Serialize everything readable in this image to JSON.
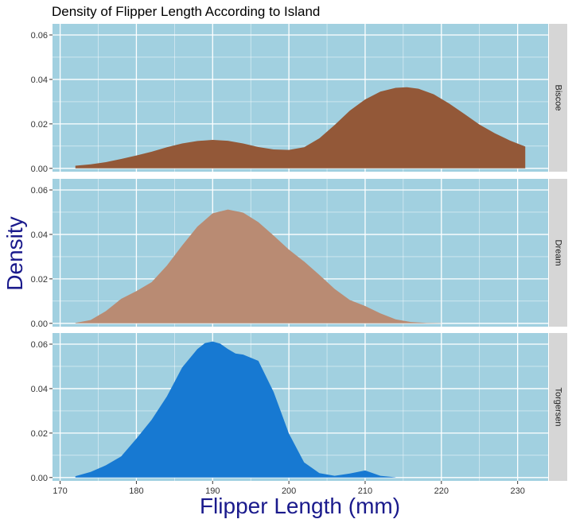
{
  "chart_data": {
    "type": "area",
    "title": "Density of Flipper Length According to Island",
    "xlabel": "Flipper Length (mm)",
    "ylabel": "Density",
    "xlim": [
      169,
      234
    ],
    "ylim": [
      -0.0015,
      0.065
    ],
    "x_ticks": [
      170,
      180,
      190,
      200,
      210,
      220,
      230
    ],
    "y_ticks": [
      0.0,
      0.02,
      0.04,
      0.06
    ],
    "y_tick_labels": [
      "0.00",
      "0.02",
      "0.04",
      "0.06"
    ],
    "grid": true,
    "facets": [
      {
        "name": "Biscoe",
        "color": "#935838",
        "x": [
          172,
          174,
          176,
          178,
          180,
          182,
          184,
          186,
          188,
          190,
          192,
          194,
          196,
          198,
          200,
          202,
          204,
          206,
          208,
          210,
          212,
          214,
          215.5,
          217,
          219,
          221,
          223,
          225,
          227,
          229,
          231
        ],
        "y": [
          0.0012,
          0.0018,
          0.0028,
          0.0042,
          0.0058,
          0.0075,
          0.0095,
          0.0112,
          0.0123,
          0.0128,
          0.0124,
          0.0112,
          0.0096,
          0.0085,
          0.0083,
          0.0095,
          0.0135,
          0.0195,
          0.026,
          0.031,
          0.0345,
          0.0362,
          0.0365,
          0.0358,
          0.0333,
          0.0292,
          0.0245,
          0.0197,
          0.0158,
          0.0125,
          0.0098
        ]
      },
      {
        "name": "Dream",
        "color": "#b98b73",
        "x": [
          172,
          174,
          176,
          178,
          180,
          182,
          184,
          186,
          188,
          190,
          192,
          194,
          196,
          198,
          200,
          202,
          204,
          206,
          208,
          210,
          212,
          214,
          216,
          218,
          220
        ],
        "y": [
          0.0002,
          0.0015,
          0.0055,
          0.011,
          0.0145,
          0.0185,
          0.026,
          0.035,
          0.0435,
          0.0495,
          0.0512,
          0.0498,
          0.0455,
          0.0395,
          0.0332,
          0.0278,
          0.0218,
          0.0155,
          0.0105,
          0.0078,
          0.0045,
          0.0018,
          0.0006,
          0.0002,
          0.0001
        ]
      },
      {
        "name": "Torgersen",
        "color": "#1779d2",
        "x": [
          172,
          174,
          176,
          178,
          180,
          182,
          184,
          186,
          188,
          189,
          190,
          191,
          192,
          193,
          194,
          196,
          198,
          200,
          202,
          204,
          206,
          208,
          210,
          212,
          214
        ],
        "y": [
          0.0006,
          0.0025,
          0.0055,
          0.0095,
          0.0175,
          0.026,
          0.0365,
          0.0495,
          0.0578,
          0.0605,
          0.0612,
          0.0602,
          0.0578,
          0.0558,
          0.0553,
          0.0525,
          0.0385,
          0.0198,
          0.0068,
          0.002,
          0.0008,
          0.0018,
          0.0032,
          0.0008,
          0.0001
        ]
      }
    ]
  }
}
